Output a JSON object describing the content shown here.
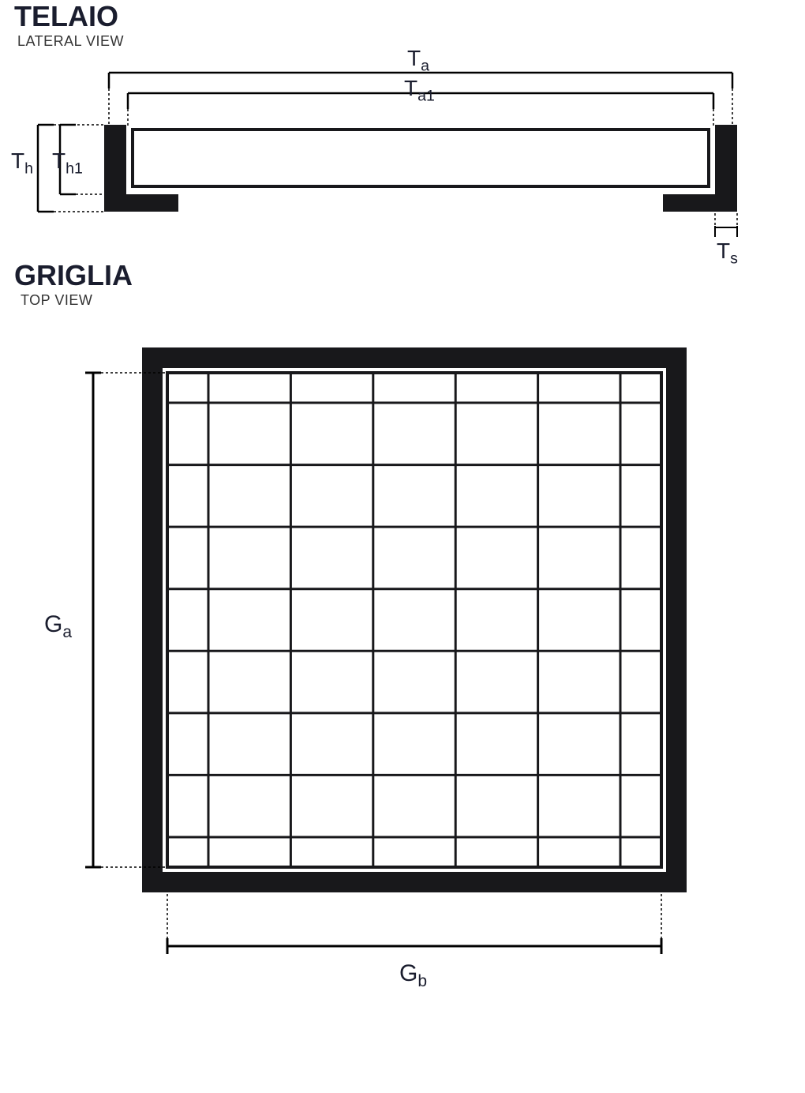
{
  "telaio": {
    "title": "TELAIO",
    "subtitle": "LATERAL VIEW",
    "title_fontsize": 36,
    "subtitle_fontsize": 18,
    "labels": {
      "Ta": {
        "base": "T",
        "sub": "a"
      },
      "Ta1": {
        "base": "T",
        "sub": "a1"
      },
      "Th": {
        "base": "T",
        "sub": "h"
      },
      "Th1": {
        "base": "T",
        "sub": "h1"
      },
      "Ts": {
        "base": "T",
        "sub": "s"
      }
    },
    "label_fontsize": 28,
    "colors": {
      "shape_fill": "#18181b",
      "stroke": "#000000",
      "background": "#ffffff"
    },
    "stroke_width": 3,
    "dash_pattern": "3,3"
  },
  "griglia": {
    "title": "GRIGLIA",
    "subtitle": "TOP VIEW",
    "title_fontsize": 36,
    "subtitle_fontsize": 18,
    "labels": {
      "Ga": {
        "base": "G",
        "sub": "a"
      },
      "Gb": {
        "base": "G",
        "sub": "b"
      }
    },
    "label_fontsize": 28,
    "grid": {
      "cols": 7,
      "rows": 9,
      "outer_border_width": 26,
      "inner_border_width": 4,
      "grid_line_width": 3,
      "gap": 6
    },
    "colors": {
      "shape_fill": "#18181b",
      "stroke": "#000000",
      "background": "#ffffff"
    },
    "dash_pattern": "3,3"
  }
}
